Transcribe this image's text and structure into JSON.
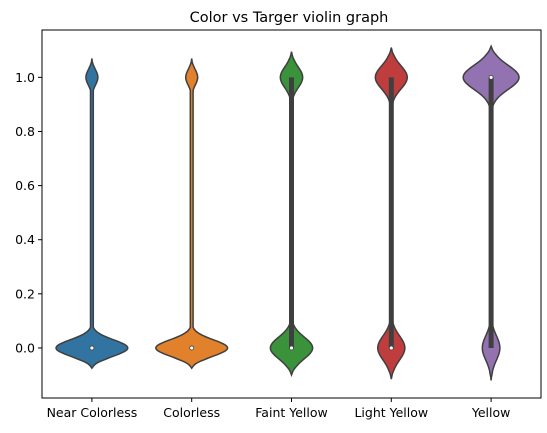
{
  "chart_data": {
    "type": "violin",
    "title": "Color vs Targer violin graph",
    "xlabel": "",
    "ylabel": "",
    "ylim": [
      -0.185,
      1.175
    ],
    "yticks": [
      0.0,
      0.2,
      0.4,
      0.6,
      0.8,
      1.0
    ],
    "ytick_labels": [
      "0.0",
      "0.2",
      "0.4",
      "0.6",
      "0.8",
      "1.0"
    ],
    "grid": false,
    "legend": "none",
    "categories": [
      "Near Colorless",
      "Colorless",
      "Faint Yellow",
      "Light Yellow",
      "Yellow"
    ],
    "series": [
      {
        "category": "Near Colorless",
        "color": "#3274a1",
        "range": [
          -0.075,
          1.07
        ],
        "median": 0.0,
        "q1": 0.0,
        "q3": 0.0,
        "low_mode": 0.0,
        "low_mode_halfwidth": 0.9,
        "low_mode_sigma": 0.03,
        "high_mode": 1.0,
        "high_mode_halfwidth": 0.15,
        "high_mode_sigma": 0.028
      },
      {
        "category": "Colorless",
        "color": "#e1812c",
        "range": [
          -0.075,
          1.07
        ],
        "median": 0.0,
        "q1": 0.0,
        "q3": 0.0,
        "low_mode": 0.0,
        "low_mode_halfwidth": 0.9,
        "low_mode_sigma": 0.03,
        "high_mode": 1.0,
        "high_mode_halfwidth": 0.15,
        "high_mode_sigma": 0.028
      },
      {
        "category": "Faint Yellow",
        "color": "#3a923a",
        "range": [
          -0.1,
          1.095
        ],
        "median": 0.0,
        "q1": 0.0,
        "q3": 1.0,
        "low_mode": 0.0,
        "low_mode_halfwidth": 0.53,
        "low_mode_sigma": 0.04,
        "high_mode": 1.0,
        "high_mode_halfwidth": 0.28,
        "high_mode_sigma": 0.038
      },
      {
        "category": "Light Yellow",
        "color": "#c03d3e",
        "range": [
          -0.115,
          1.11
        ],
        "median": 0.0,
        "q1": 0.0,
        "q3": 1.0,
        "low_mode": 0.0,
        "low_mode_halfwidth": 0.34,
        "low_mode_sigma": 0.045,
        "high_mode": 1.0,
        "high_mode_halfwidth": 0.4,
        "high_mode_sigma": 0.043
      },
      {
        "category": "Yellow",
        "color": "#9372b2",
        "range": [
          -0.12,
          1.115
        ],
        "median": 1.0,
        "q1": 0.0,
        "q3": 1.0,
        "low_mode": 0.0,
        "low_mode_halfwidth": 0.22,
        "low_mode_sigma": 0.045,
        "high_mode": 1.0,
        "high_mode_halfwidth": 0.7,
        "high_mode_sigma": 0.045
      }
    ]
  }
}
